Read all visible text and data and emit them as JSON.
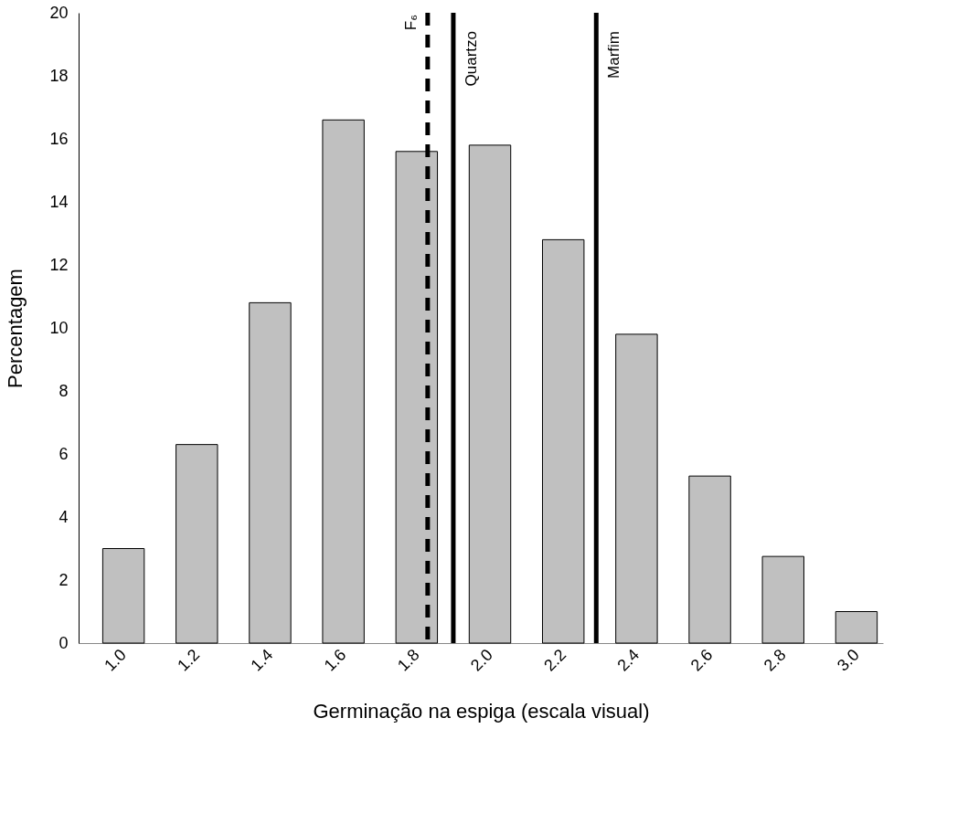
{
  "chart_data": {
    "type": "bar",
    "xlabel": "Germinação na espiga (escala visual)",
    "ylabel": "Percentagem",
    "x": [
      1.0,
      1.2,
      1.4,
      1.6,
      1.8,
      2.0,
      2.2,
      2.4,
      2.6,
      2.8,
      3.0
    ],
    "values": [
      3.0,
      6.3,
      10.8,
      16.6,
      15.6,
      15.8,
      12.8,
      9.8,
      5.3,
      2.75,
      1.0
    ],
    "color": "#c0c0c0",
    "xlim": [
      0.89,
      3.06
    ],
    "xticks": [
      {
        "value": 1.0,
        "label": "1.0"
      },
      {
        "value": 1.2,
        "label": "1.2"
      },
      {
        "value": 1.4,
        "label": "1.4"
      },
      {
        "value": 1.6,
        "label": "1.6"
      },
      {
        "value": 1.8,
        "label": "1.8"
      },
      {
        "value": 2.0,
        "label": "2.0"
      },
      {
        "value": 2.2,
        "label": "2.2"
      },
      {
        "value": 2.4,
        "label": "2.4"
      },
      {
        "value": 2.6,
        "label": "2.6"
      },
      {
        "value": 2.8,
        "label": "2.8"
      },
      {
        "value": 3.0,
        "label": "3.0"
      }
    ],
    "ylim": [
      0,
      20
    ],
    "yticks": [
      0,
      2,
      4,
      6,
      8,
      10,
      12,
      14,
      16,
      18,
      20
    ],
    "grid": false,
    "ref_lines": [
      {
        "axis": "x",
        "value": 1.83,
        "label": "F₆",
        "color": "#000000",
        "line_style": "dashed"
      },
      {
        "axis": "x",
        "value": 1.9,
        "label": "Quartzo",
        "color": "#000000",
        "line_style": "solid"
      },
      {
        "axis": "x",
        "value": 2.29,
        "label": "Marfim",
        "color": "#000000",
        "line_style": "solid"
      }
    ]
  }
}
